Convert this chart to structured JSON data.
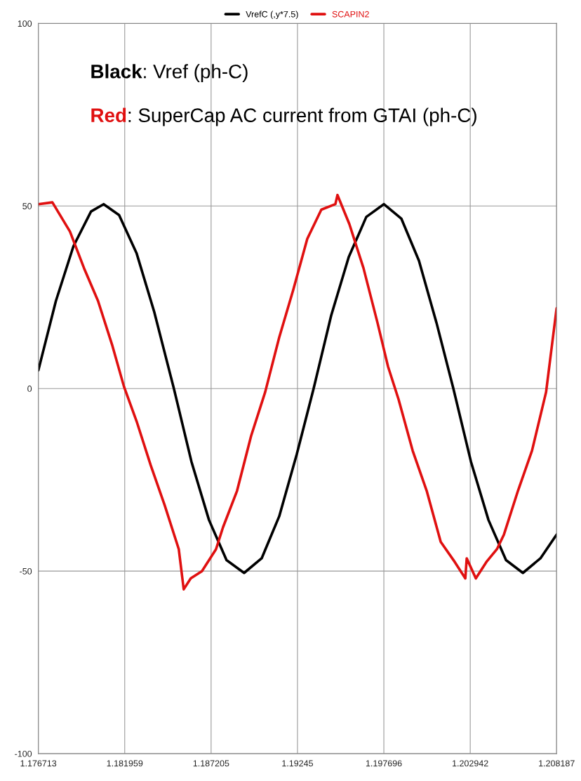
{
  "chart_data": {
    "type": "line",
    "annotations": [
      "Black: Vref (ph-C)",
      "Red: SuperCap AC current from GTAI (ph-C)"
    ],
    "series": [
      {
        "name": "VrefC (,y*7.5)",
        "color": "#000000",
        "x": [
          1.176713,
          1.177779,
          1.178845,
          1.179912,
          1.180679,
          1.181617,
          1.182683,
          1.18375,
          1.184944,
          1.18601,
          1.187076,
          1.188142,
          1.189209,
          1.190275,
          1.191341,
          1.192407,
          1.193431,
          1.194497,
          1.195563,
          1.196629,
          1.197696,
          1.198762,
          1.199828,
          1.200894,
          1.201918,
          1.202984,
          1.20405,
          1.205116,
          1.20614,
          1.207206,
          1.208187
        ],
        "values": [
          5,
          24,
          39,
          48.5,
          50.5,
          47.5,
          37,
          21,
          0,
          -20,
          -36,
          -47,
          -50.5,
          -46.5,
          -35,
          -18,
          0,
          20,
          36,
          47,
          50.5,
          46.5,
          35,
          18,
          0,
          -20,
          -36,
          -47,
          -50.5,
          -46.5,
          -40
        ]
      },
      {
        "name": "SCAPIN2",
        "color": "#e01010",
        "x": [
          1.176713,
          1.177566,
          1.178632,
          1.179485,
          1.180338,
          1.181191,
          1.181916,
          1.182683,
          1.183536,
          1.184389,
          1.185242,
          1.185541,
          1.185967,
          1.186649,
          1.187502,
          1.187928,
          1.188781,
          1.189634,
          1.190487,
          1.19134,
          1.192193,
          1.193046,
          1.193899,
          1.194752,
          1.19488,
          1.195605,
          1.196458,
          1.197311,
          1.197951,
          1.198591,
          1.199444,
          1.200297,
          1.20115,
          1.202003,
          1.202643,
          1.202729,
          1.203282,
          1.203922,
          1.204562,
          1.204988,
          1.205841,
          1.206694,
          1.207547,
          1.208187
        ],
        "values": [
          50.5,
          51,
          43,
          33,
          24,
          12,
          0.5,
          -9,
          -21,
          -32,
          -44,
          -55,
          -52,
          -50,
          -44,
          -38,
          -28,
          -13,
          -1,
          14,
          27,
          41,
          49,
          50.5,
          53,
          45,
          33,
          18,
          6,
          -3,
          -17,
          -28,
          -42,
          -47.5,
          -52,
          -46.5,
          -52,
          -47.5,
          -44,
          -40,
          -28,
          -17,
          -1,
          22
        ]
      }
    ],
    "xlim": [
      1.176713,
      1.208187
    ],
    "xticks": [
      1.176713,
      1.181959,
      1.187205,
      1.19245,
      1.197696,
      1.202942,
      1.208187
    ],
    "ylim": [
      -100,
      100
    ],
    "yticks": [
      -100,
      -50,
      0,
      50,
      100
    ],
    "grid": true,
    "legend": "top",
    "line_style": "solid",
    "marker": "none"
  }
}
